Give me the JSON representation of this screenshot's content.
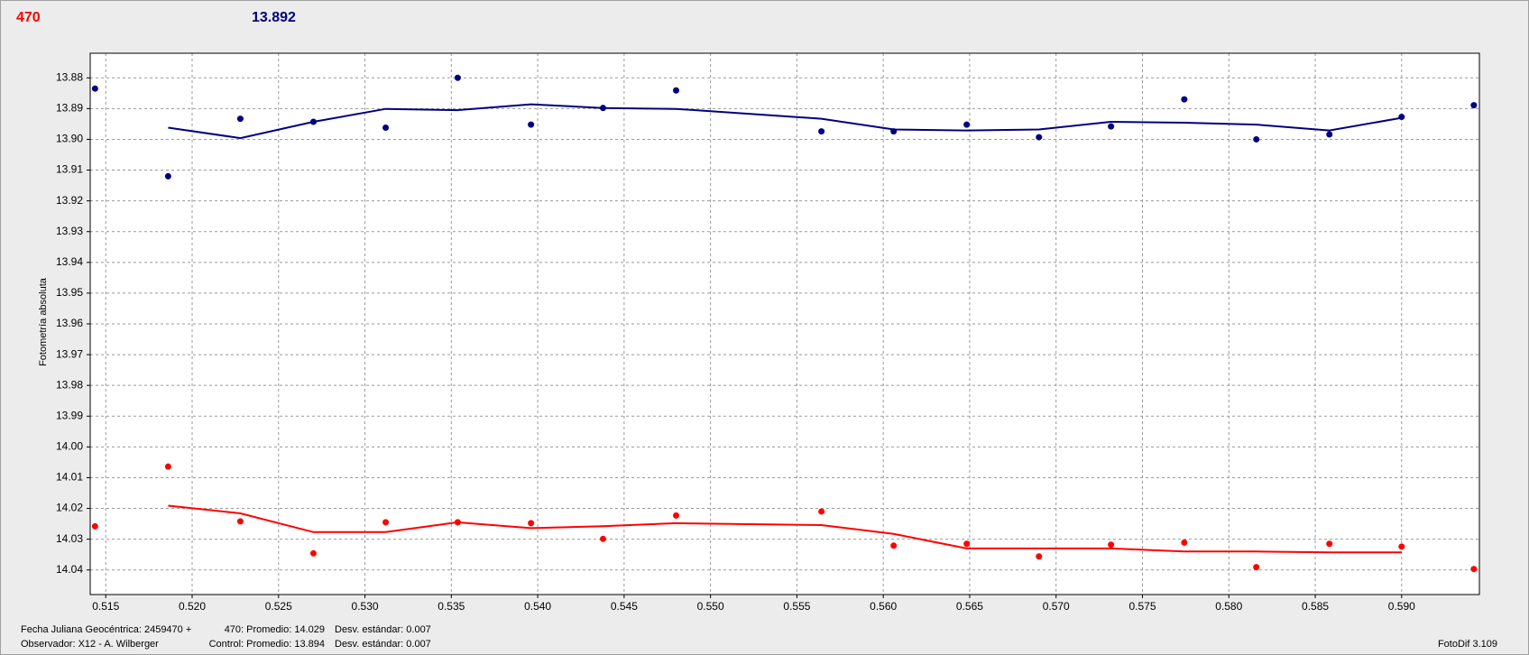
{
  "chart_data": {
    "type": "scatter",
    "top_labels": [
      {
        "text": "470",
        "color": "#ff0000"
      },
      {
        "text": "13.892",
        "color": "#000080"
      }
    ],
    "ylabel": "Fotometría absoluta",
    "xlim": [
      0.5141,
      0.5945
    ],
    "ylim": [
      14.048,
      13.872
    ],
    "xticks": [
      0.515,
      {
        "value": 0.52,
        "label": "0.520"
      },
      0.525,
      {
        "value": 0.53,
        "label": "0.530"
      },
      0.535,
      {
        "value": 0.54,
        "label": "0.540"
      },
      0.545,
      {
        "value": 0.55,
        "label": "0.550"
      },
      0.555,
      {
        "value": 0.56,
        "label": "0.560"
      },
      0.565,
      {
        "value": 0.57,
        "label": "0.570"
      },
      0.575,
      {
        "value": 0.58,
        "label": "0.580"
      },
      0.585,
      {
        "value": 0.59,
        "label": "0.590"
      }
    ],
    "yticks": [
      13.88,
      13.89,
      {
        "value": 13.9,
        "label": "13.90"
      },
      13.91,
      13.92,
      13.93,
      13.94,
      13.95,
      13.96,
      13.97,
      13.98,
      13.99,
      {
        "value": 14,
        "label": "14.00"
      },
      14.01,
      14.02,
      14.03,
      14.04
    ],
    "grid": true,
    "series": [
      {
        "kind": "points",
        "color": "#000080",
        "x": [
          0.51438,
          0.51861,
          0.52279,
          0.52702,
          0.5312,
          0.53537,
          0.53961,
          0.54378,
          0.54801,
          0.55642,
          0.5606,
          0.56483,
          0.56901,
          0.57318,
          0.57742,
          0.58159,
          0.58582,
          0.59,
          0.59418
        ],
        "values": [
          13.8835,
          13.912,
          13.8933,
          13.8943,
          13.8962,
          13.88,
          13.8952,
          13.8898,
          13.8841,
          13.8974,
          13.8974,
          13.8952,
          13.8993,
          13.8958,
          13.887,
          13.9,
          13.8984,
          13.8927,
          13.8889
        ]
      },
      {
        "kind": "line",
        "color": "#000080",
        "x": [
          0.51861,
          0.52279,
          0.52702,
          0.5312,
          0.53537,
          0.53961,
          0.54378,
          0.54801,
          0.55642,
          0.5606,
          0.56483,
          0.56901,
          0.57318,
          0.57742,
          0.58159,
          0.58582,
          0.59
        ],
        "values": [
          13.8962,
          13.8996,
          13.8943,
          13.8901,
          13.8905,
          13.8886,
          13.8898,
          13.8901,
          13.8933,
          13.8968,
          13.8971,
          13.8968,
          13.8943,
          13.8946,
          13.8952,
          13.8971,
          13.893
        ]
      },
      {
        "kind": "points",
        "color": "#ff0000",
        "x": [
          0.51438,
          0.51861,
          0.52279,
          0.52702,
          0.5312,
          0.53537,
          0.53961,
          0.54378,
          0.54801,
          0.55642,
          0.5606,
          0.56483,
          0.56901,
          0.57318,
          0.57742,
          0.58159,
          0.58582,
          0.59,
          0.59418
        ],
        "values": [
          14.0258,
          14.0064,
          14.0242,
          14.0346,
          14.0245,
          14.0245,
          14.0248,
          14.0299,
          14.0223,
          14.021,
          14.0321,
          14.0315,
          14.0356,
          14.0318,
          14.0311,
          14.0391,
          14.0315,
          14.0324,
          14.0397
        ]
      },
      {
        "kind": "line",
        "color": "#ff0000",
        "x": [
          0.51861,
          0.52279,
          0.52702,
          0.5312,
          0.53537,
          0.53961,
          0.54378,
          0.54801,
          0.55642,
          0.5606,
          0.56483,
          0.56901,
          0.57318,
          0.57742,
          0.58159,
          0.58582,
          0.59
        ],
        "values": [
          14.0191,
          14.0216,
          14.0277,
          14.0277,
          14.0245,
          14.0264,
          14.0258,
          14.0248,
          14.0254,
          14.0283,
          14.033,
          14.033,
          14.033,
          14.034,
          14.034,
          14.0343,
          14.0343
        ]
      }
    ],
    "footer": {
      "date": "Fecha Juliana Geocéntrica: 2459470 +",
      "observer": "Observador: X12 - A. Wilberger",
      "stats1": "470: Promedio: 14.029",
      "dev1": "Desv. estándar: 0.007",
      "stats2": "Control: Promedio: 13.894",
      "dev2": "Desv. estándar: 0.007",
      "version": "FotoDif 3.109"
    }
  }
}
